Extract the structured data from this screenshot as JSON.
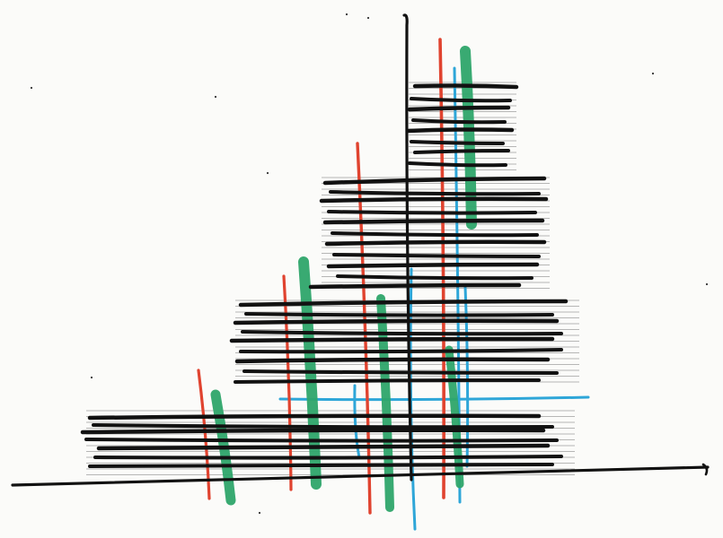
{
  "artwork": {
    "kind": "hand-drawn abstract marker sketch on white paper",
    "text": "",
    "colors": {
      "paper": "#fbfbf9",
      "black_ink": "#121212",
      "red_ink": "#e0432f",
      "green_ink": "#2ea56a",
      "blue_ink": "#2ea6d8"
    }
  }
}
